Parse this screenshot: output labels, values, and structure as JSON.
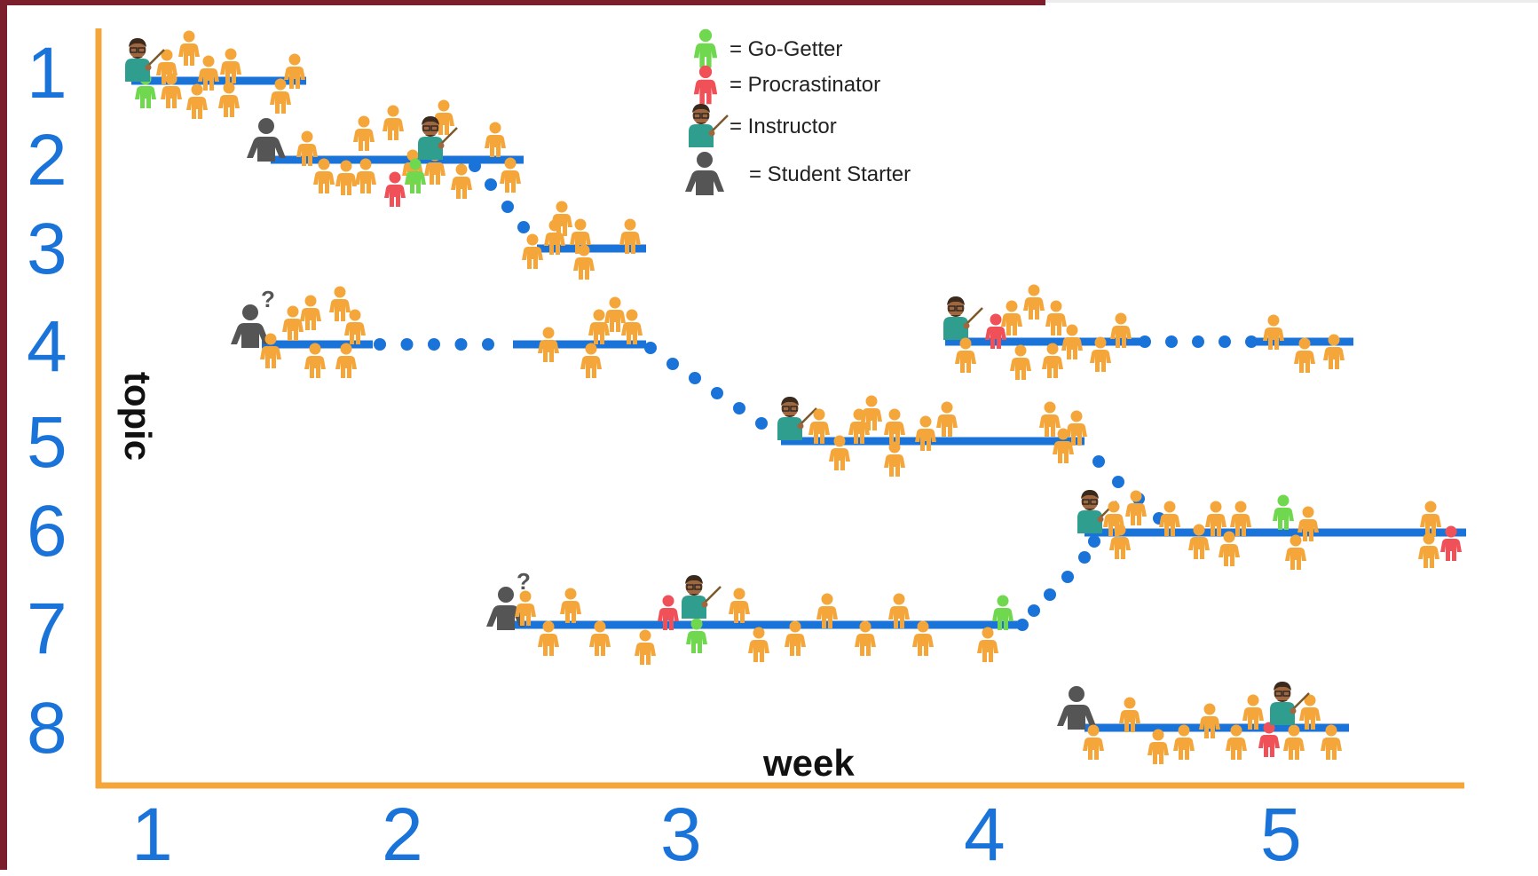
{
  "axes": {
    "topic_title": "topic",
    "week_title": "week",
    "topic_labels": [
      "1",
      "2",
      "3",
      "4",
      "5",
      "6",
      "7",
      "8"
    ],
    "week_labels": [
      "1",
      "2",
      "3",
      "4",
      "5"
    ]
  },
  "legend": [
    {
      "label": "= Go-Getter",
      "icon": "go-getter-icon",
      "color": "#6fd84f"
    },
    {
      "label": "= Procrastinator",
      "icon": "procrastinator-icon",
      "color": "#f05058"
    },
    {
      "label": "= Instructor",
      "icon": "instructor-icon",
      "color": "#2f9e8f"
    },
    {
      "label": "= Student Starter",
      "icon": "student-starter-icon",
      "color": "#555555"
    }
  ],
  "colors": {
    "axis": "#f5a63a",
    "track": "#1a73d9",
    "student": "#f5a63a",
    "go_getter": "#6fd84f",
    "procrastinator": "#f05058",
    "instructor": "#2f9e8f",
    "starter": "#555555",
    "frame": "#7a1f2b"
  }
}
